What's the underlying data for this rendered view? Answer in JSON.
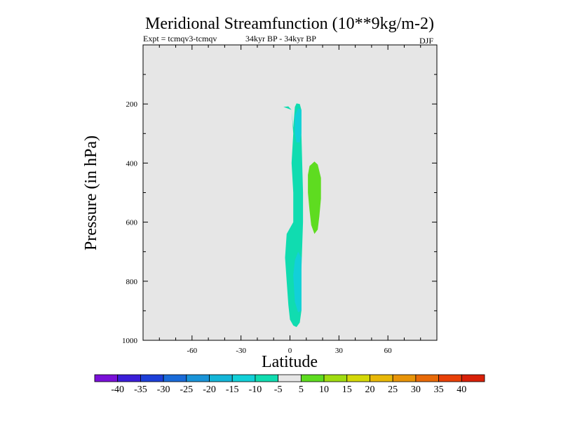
{
  "header": {
    "title": "Meridional Streamfunction (10**9kg/m-2)",
    "expt": "Expt = tcmqv3-tcmqv",
    "period": "34kyr BP - 34kyr BP",
    "season": "DJF"
  },
  "chart_data": {
    "type": "contour",
    "xlabel": "Latitude",
    "ylabel": "Pressure (in hPa)",
    "xlim": [
      -90,
      90
    ],
    "ylim": [
      1000,
      0
    ],
    "x_ticks": [
      -60,
      -30,
      0,
      30,
      60
    ],
    "y_ticks": [
      200,
      400,
      600,
      800,
      1000
    ],
    "background_color": "#e6e6e6",
    "colorbar": {
      "labels": [
        "-40",
        "-35",
        "-30",
        "-25",
        "-20",
        "-15",
        "-10",
        "-5",
        "5",
        "10",
        "15",
        "20",
        "25",
        "30",
        "35",
        "40"
      ],
      "colors": [
        "#7a10d8",
        "#3b1ed8",
        "#1d3fd8",
        "#1a6bd8",
        "#1a94d8",
        "#14b6d8",
        "#12d0d8",
        "#10dcb0",
        "#e6e6e6",
        "#5edc20",
        "#a0dc10",
        "#d4d808",
        "#e8b808",
        "#e89408",
        "#e86a08",
        "#e84008",
        "#d82008"
      ]
    },
    "regions": [
      {
        "name": "-10 to -5",
        "color": "#10dcb0",
        "points": [
          [
            -4,
            210
          ],
          [
            -1,
            208
          ],
          [
            1,
            220
          ],
          [
            2,
            300
          ],
          [
            1,
            400
          ],
          [
            2,
            500
          ],
          [
            2,
            600
          ],
          [
            -2,
            640
          ],
          [
            -3,
            720
          ],
          [
            -2,
            800
          ],
          [
            -1,
            880
          ],
          [
            0,
            930
          ],
          [
            2,
            950
          ],
          [
            4,
            955
          ],
          [
            6,
            940
          ],
          [
            7,
            900
          ],
          [
            7,
            760
          ],
          [
            8,
            600
          ],
          [
            8,
            500
          ],
          [
            7,
            300
          ],
          [
            7,
            220
          ],
          [
            6,
            200
          ],
          [
            4,
            198
          ],
          [
            3,
            210
          ],
          [
            2,
            280
          ],
          [
            1,
            220
          ]
        ]
      },
      {
        "name": "-15 to -10 upper",
        "color": "#12d0d8",
        "points": [
          [
            3,
            300
          ],
          [
            3,
            240
          ],
          [
            5,
            215
          ],
          [
            7,
            220
          ],
          [
            7,
            300
          ],
          [
            6,
            330
          ],
          [
            4,
            330
          ]
        ]
      },
      {
        "name": "-15 to -10 lower",
        "color": "#12d0d8",
        "points": [
          [
            2,
            780
          ],
          [
            3,
            730
          ],
          [
            5,
            700
          ],
          [
            7,
            720
          ],
          [
            7,
            900
          ],
          [
            5,
            905
          ],
          [
            3,
            870
          ]
        ]
      },
      {
        "name": "5 to 10",
        "color": "#5edc20",
        "points": [
          [
            11,
            440
          ],
          [
            12,
            410
          ],
          [
            15,
            395
          ],
          [
            17,
            405
          ],
          [
            19,
            450
          ],
          [
            19,
            520
          ],
          [
            18,
            580
          ],
          [
            17,
            625
          ],
          [
            15,
            640
          ],
          [
            13,
            610
          ],
          [
            12,
            560
          ],
          [
            11,
            500
          ]
        ]
      }
    ]
  }
}
